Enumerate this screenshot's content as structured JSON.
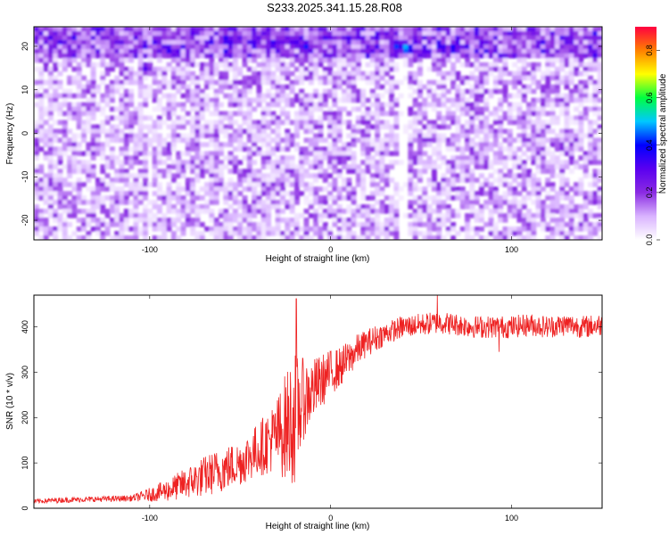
{
  "title": "S233.2025.341.15.28.R08",
  "chart_data": [
    {
      "type": "heatmap",
      "xlabel": "Height of straight line (km)",
      "ylabel": "Frequency (Hz)",
      "xlim": [
        -164,
        150
      ],
      "ylim": [
        -24.5,
        24.5
      ],
      "x_ticks": [
        -100,
        0,
        100
      ],
      "y_ticks": [
        -20,
        -10,
        0,
        10,
        20
      ],
      "colorbar": {
        "label": "Normalized spectral amplitude",
        "range": [
          0,
          0.9
        ],
        "ticks": [
          0.0,
          0.2,
          0.4,
          0.6,
          0.8
        ],
        "colors": [
          "#ffffff",
          "#d9b3ff",
          "#8a2be2",
          "#5a00f0",
          "#0000ff",
          "#00c8ff",
          "#00ff40",
          "#ffff00",
          "#ff8000",
          "#ff0040"
        ]
      },
      "background_level": 0.15,
      "hot_spots": [
        {
          "x": -102,
          "y": 15,
          "value": 0.35
        },
        {
          "x": -28,
          "y": 21,
          "value": 0.35
        },
        {
          "x": -20,
          "y": 21,
          "value": 0.4
        },
        {
          "x": -14,
          "y": 20,
          "value": 0.45
        },
        {
          "x": 37,
          "y": 20,
          "value": 0.5
        },
        {
          "x": 42,
          "y": 19.5,
          "value": 0.6
        },
        {
          "x": 62,
          "y": 19.5,
          "value": 0.4
        },
        {
          "x": 68,
          "y": 19.5,
          "value": 0.45
        },
        {
          "x": 146,
          "y": 18,
          "value": 0.35
        }
      ]
    },
    {
      "type": "line",
      "xlabel": "Height of straight line (km)",
      "ylabel": "SNR (10 * v/v)",
      "xlim": [
        -164,
        150
      ],
      "ylim": [
        0,
        470
      ],
      "x_ticks": [
        -100,
        0,
        100
      ],
      "y_ticks": [
        0,
        100,
        200,
        300,
        400
      ],
      "color": "#ee2222",
      "x": [
        -164,
        -150,
        -130,
        -110,
        -100,
        -90,
        -80,
        -70,
        -60,
        -50,
        -40,
        -30,
        -25,
        -20,
        -15,
        -10,
        -5,
        0,
        5,
        10,
        15,
        20,
        25,
        30,
        40,
        50,
        60,
        70,
        80,
        90,
        100,
        110,
        120,
        130,
        140,
        150
      ],
      "y": [
        15,
        18,
        20,
        22,
        30,
        40,
        55,
        70,
        85,
        100,
        130,
        160,
        180,
        200,
        240,
        260,
        280,
        300,
        310,
        330,
        350,
        365,
        375,
        385,
        400,
        405,
        410,
        405,
        400,
        400,
        400,
        405,
        400,
        405,
        400,
        405
      ],
      "noise": [
        5,
        6,
        6,
        7,
        15,
        25,
        35,
        45,
        50,
        50,
        60,
        80,
        120,
        150,
        90,
        70,
        60,
        50,
        45,
        40,
        35,
        30,
        30,
        25,
        25,
        25,
        25,
        25,
        25,
        25,
        25,
        25,
        25,
        25,
        25,
        25
      ],
      "notable_points": [
        {
          "x": -19,
          "y": 462
        },
        {
          "x": 59,
          "y": 472
        },
        {
          "x": 93,
          "y": 345
        }
      ]
    }
  ]
}
